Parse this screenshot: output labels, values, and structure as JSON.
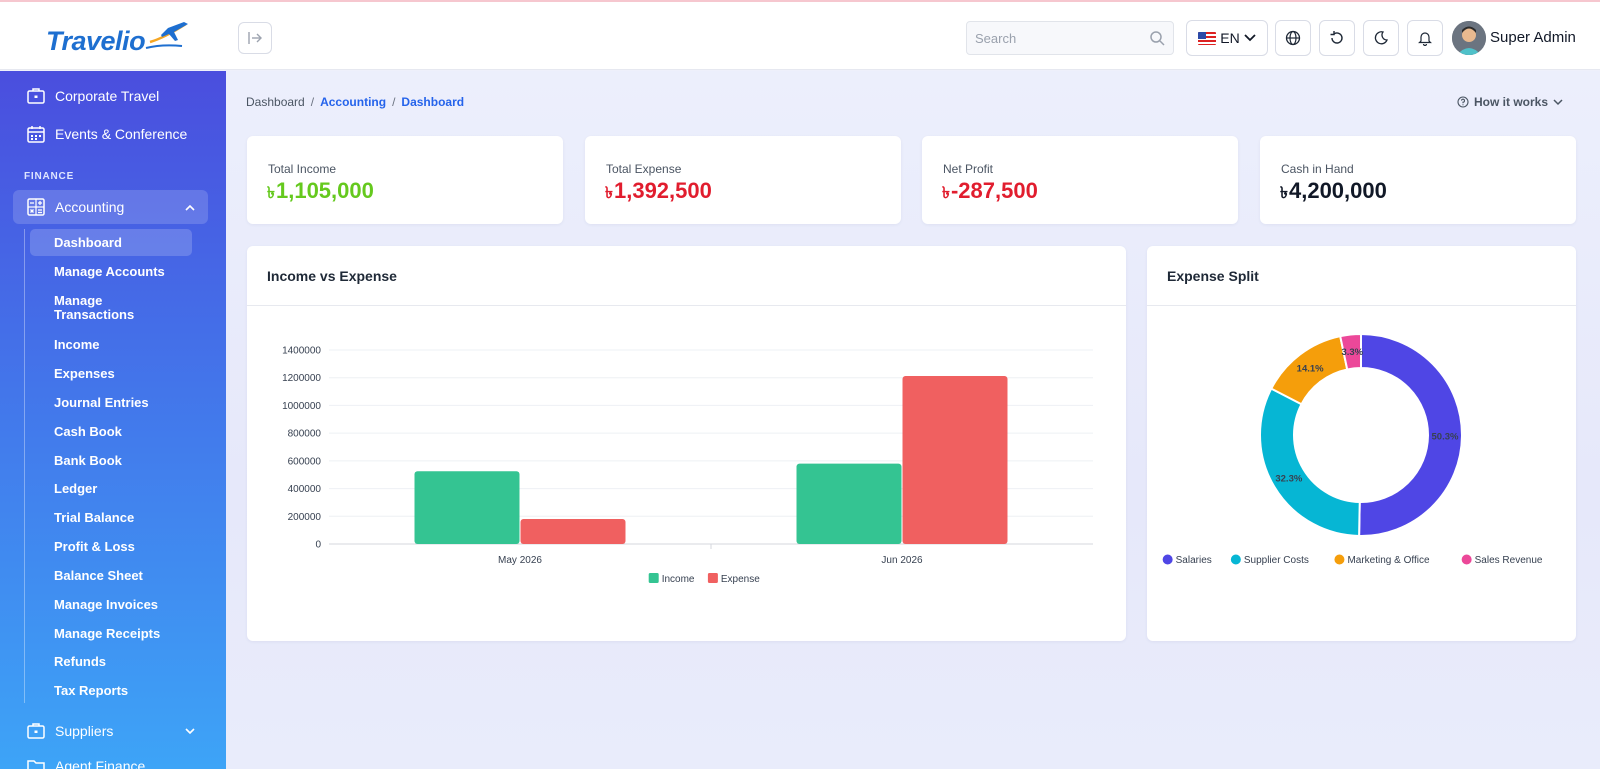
{
  "header": {
    "logo_text": "Travelio",
    "search_placeholder": "Search",
    "language": "EN",
    "user_name": "Super Admin"
  },
  "sidebar": {
    "top_items": [
      {
        "label": "Corporate Travel",
        "icon": "briefcase-icon"
      },
      {
        "label": "Events & Conference",
        "icon": "calendar-icon"
      }
    ],
    "section_title": "FINANCE",
    "group": {
      "label": "Accounting",
      "icon": "calculator-icon"
    },
    "sub_items": [
      "Dashboard",
      "Manage Accounts",
      "Manage Transactions",
      "Income",
      "Expenses",
      "Journal Entries",
      "Cash Book",
      "Bank Book",
      "Ledger",
      "Trial Balance",
      "Profit & Loss",
      "Balance Sheet",
      "Manage Invoices",
      "Manage Receipts",
      "Refunds",
      "Tax Reports"
    ],
    "bottom_items": [
      {
        "label": "Suppliers",
        "icon": "briefcase-icon"
      },
      {
        "label": "Agent Finance",
        "icon": "folder-icon"
      }
    ]
  },
  "breadcrumb": [
    "Dashboard",
    "Accounting",
    "Dashboard"
  ],
  "how_it_works": "How it works",
  "stats": [
    {
      "label": "Total Income",
      "currency": "৳",
      "value": "1,105,000",
      "color": "#65c91e"
    },
    {
      "label": "Total Expense",
      "currency": "৳",
      "value": "1,392,500",
      "color": "#e11d2e"
    },
    {
      "label": "Net Profit",
      "currency": "৳",
      "value": "-287,500",
      "color": "#e11d2e"
    },
    {
      "label": "Cash in Hand",
      "currency": "৳",
      "value": "4,200,000",
      "color": "#111827"
    }
  ],
  "panels": {
    "bar_title": "Income vs Expense",
    "pie_title": "Expense Split"
  },
  "chart_data": [
    {
      "type": "bar",
      "title": "Income vs Expense",
      "categories": [
        "May 2026",
        "Jun 2026"
      ],
      "series": [
        {
          "name": "Income",
          "values": [
            525000,
            580000
          ],
          "color": "#34c492"
        },
        {
          "name": "Expense",
          "values": [
            180000,
            1212500
          ],
          "color": "#f06060"
        }
      ],
      "ylim": [
        0,
        1400000
      ],
      "yticks": [
        0,
        200000,
        400000,
        600000,
        800000,
        1000000,
        1200000,
        1400000
      ],
      "grid": true,
      "legend": "bottom"
    },
    {
      "type": "pie",
      "title": "Expense Split",
      "donut": true,
      "slices": [
        {
          "name": "Salaries",
          "value": 50.3,
          "label": "50.3%",
          "color": "#4f46e5"
        },
        {
          "name": "Supplier Costs",
          "value": 32.3,
          "label": "32.3%",
          "color": "#06b6d4"
        },
        {
          "name": "Marketing & Office",
          "value": 14.1,
          "label": "14.1%",
          "color": "#f59e0b"
        },
        {
          "name": "Sales Revenue",
          "value": 3.3,
          "label": "3.3%",
          "color": "#ec4899"
        }
      ],
      "legend": "bottom"
    }
  ]
}
